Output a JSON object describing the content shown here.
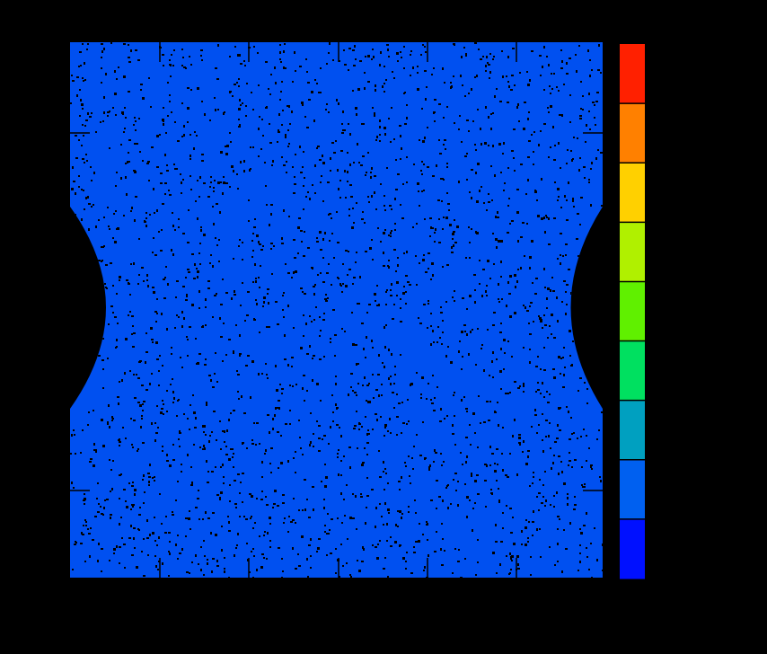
{
  "chart_data": {
    "type": "heatmap",
    "title": "",
    "xlabel": "",
    "ylabel": "",
    "grid": false,
    "field_color": "#0050f0",
    "defect_color": "#000000",
    "background_color": "#000000",
    "specimen": {
      "description_visible": false,
      "notch_sides": [
        "left",
        "right"
      ]
    },
    "colorbar": {
      "position": "right",
      "band_colors": [
        "#0010ff",
        "#0060f0",
        "#00a0c0",
        "#00e060",
        "#60f000",
        "#b0f000",
        "#ffd000",
        "#ff8000",
        "#ff2000"
      ]
    }
  }
}
